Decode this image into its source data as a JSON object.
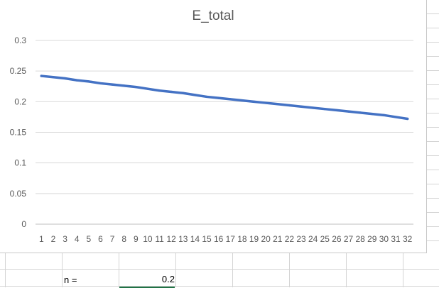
{
  "spreadsheet": {
    "n_label": "n =",
    "n_value": "0.2"
  },
  "chart_data": {
    "type": "line",
    "title": "E_total",
    "xlabel": "",
    "ylabel": "",
    "categories": [
      "1",
      "2",
      "3",
      "4",
      "5",
      "6",
      "7",
      "8",
      "9",
      "10",
      "11",
      "12",
      "13",
      "14",
      "15",
      "16",
      "17",
      "18",
      "19",
      "20",
      "21",
      "22",
      "23",
      "24",
      "25",
      "26",
      "27",
      "28",
      "29",
      "30",
      "31",
      "32"
    ],
    "y_ticks": [
      "0",
      "0.05",
      "0.1",
      "0.15",
      "0.2",
      "0.25",
      "0.3"
    ],
    "ylim": [
      0,
      0.3
    ],
    "grid": true,
    "legend": "none",
    "series": [
      {
        "color": "#4472C4",
        "values": [
          0.242,
          0.24,
          0.238,
          0.235,
          0.233,
          0.23,
          0.228,
          0.226,
          0.224,
          0.221,
          0.218,
          0.216,
          0.214,
          0.211,
          0.208,
          0.206,
          0.204,
          0.202,
          0.2,
          0.198,
          0.196,
          0.194,
          0.192,
          0.19,
          0.188,
          0.186,
          0.184,
          0.182,
          0.18,
          0.178,
          0.175,
          0.172
        ]
      }
    ]
  }
}
